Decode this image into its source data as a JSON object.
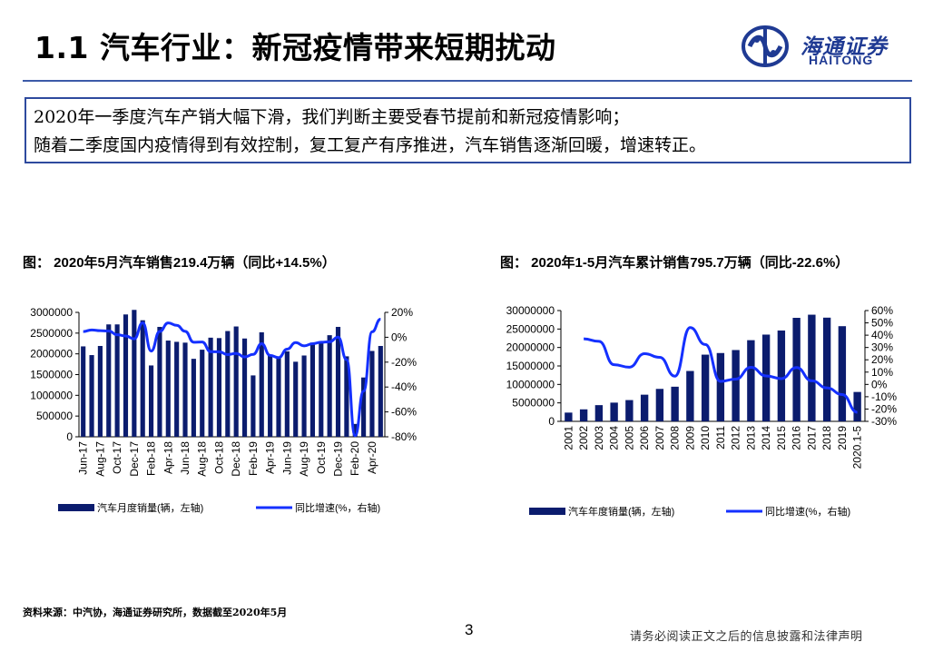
{
  "page": {
    "title": "1.1 汽车行业：新冠疫情带来短期扰动",
    "logo": {
      "cn": "海通证券",
      "en": "HAITONG",
      "icon": "haitong-logo-icon"
    },
    "summary": [
      "2020年一季度汽车产销大幅下滑，我们判断主要受春节提前和新冠疫情影响；",
      "随着二季度国内疫情得到有效控制，复工复产有序推进，汽车销售逐渐回暖，增速转正。"
    ],
    "source": "资料来源：中汽协，海通证券研究所，数据截至2020年5月",
    "page_number": "3",
    "disclaimer": "请务必阅读正文之后的信息披露和法律声明",
    "colors": {
      "bar": "#0b1c6e",
      "line": "#1430ff",
      "accent": "#2e4a9e"
    }
  },
  "chart_data": [
    {
      "type": "bar",
      "title": "图： 2020年5月汽车销售219.4万辆（同比+14.5%）",
      "categories": [
        "Jun-17",
        "Jul-17",
        "Aug-17",
        "Sep-17",
        "Oct-17",
        "Nov-17",
        "Dec-17",
        "Jan-18",
        "Feb-18",
        "Mar-18",
        "Apr-18",
        "May-18",
        "Jun-18",
        "Jul-18",
        "Aug-18",
        "Sep-18",
        "Oct-18",
        "Nov-18",
        "Dec-18",
        "Jan-19",
        "Feb-19",
        "Mar-19",
        "Apr-19",
        "May-19",
        "Jun-19",
        "Jul-19",
        "Aug-19",
        "Sep-19",
        "Oct-19",
        "Nov-19",
        "Dec-19",
        "Jan-20",
        "Feb-20",
        "Mar-20",
        "Apr-20",
        "May-20"
      ],
      "tick_labels": [
        "Jun-17",
        "Aug-17",
        "Oct-17",
        "Dec-17",
        "Feb-18",
        "Apr-18",
        "Jun-18",
        "Aug-18",
        "Oct-18",
        "Dec-18",
        "Feb-19",
        "Apr-19",
        "Jun-19",
        "Aug-19",
        "Oct-19",
        "Dec-19",
        "Feb-20",
        "Apr-20"
      ],
      "series": [
        {
          "name": "汽车月度销量(辆，左轴)",
          "kind": "bar",
          "axis": "left",
          "values": [
            2180000,
            1970000,
            2190000,
            2710000,
            2710000,
            2950000,
            3060000,
            2810000,
            1720000,
            2650000,
            2320000,
            2290000,
            2270000,
            1880000,
            2100000,
            2390000,
            2380000,
            2550000,
            2660000,
            2370000,
            1480000,
            2520000,
            1980000,
            1910000,
            2060000,
            1810000,
            1960000,
            2270000,
            2280000,
            2450000,
            2650000,
            1940000,
            310000,
            1430000,
            2070000,
            2190000
          ]
        },
        {
          "name": "同比增速(%，右轴)",
          "kind": "line",
          "axis": "right",
          "values": [
            4.6,
            5.9,
            5.3,
            5.0,
            2.0,
            1.0,
            -1.3,
            11.6,
            -11.1,
            4.7,
            11.5,
            9.6,
            4.8,
            -4.0,
            -3.8,
            -11.6,
            -11.7,
            -13.9,
            -13.0,
            -15.8,
            -13.8,
            -5.2,
            -14.6,
            -16.4,
            -9.6,
            -4.3,
            -6.9,
            -5.2,
            -4.0,
            -3.6,
            0.1,
            -18.0,
            -79.1,
            -43.3,
            4.4,
            14.5
          ]
        }
      ],
      "y_left": {
        "min": 0,
        "max": 3000000,
        "ticks": [
          "0",
          "500000",
          "1000000",
          "1500000",
          "2000000",
          "2500000",
          "3000000"
        ]
      },
      "y_right": {
        "min": -80,
        "max": 20,
        "ticks": [
          "-80%",
          "-60%",
          "-40%",
          "-20%",
          "0%",
          "20%"
        ]
      },
      "legend": [
        "汽车月度销量(辆，左轴)",
        "同比增速(%，右轴)"
      ],
      "legend_position": "bottom"
    },
    {
      "type": "bar",
      "title": "图： 2020年1-5月汽车累计销售795.7万辆（同比-22.6%）",
      "categories": [
        "2001",
        "2002",
        "2003",
        "2004",
        "2005",
        "2006",
        "2007",
        "2008",
        "2009",
        "2010",
        "2011",
        "2012",
        "2013",
        "2014",
        "2015",
        "2016",
        "2017",
        "2018",
        "2019",
        "2020.1-5"
      ],
      "series": [
        {
          "name": "汽车年度销量(辆，左轴)",
          "kind": "bar",
          "axis": "left",
          "values": [
            2370000,
            3250000,
            4390000,
            5070000,
            5760000,
            7220000,
            8790000,
            9380000,
            13640000,
            18060000,
            18500000,
            19310000,
            21980000,
            23490000,
            24600000,
            28030000,
            28880000,
            28080000,
            25770000,
            7957000
          ]
        },
        {
          "name": "同比增速(%，右轴)",
          "kind": "line",
          "axis": "right",
          "values": [
            null,
            37.0,
            35.0,
            16.0,
            14.0,
            25.0,
            22.0,
            6.7,
            46.2,
            32.4,
            2.5,
            4.3,
            13.9,
            6.9,
            4.7,
            13.7,
            3.0,
            -2.8,
            -8.2,
            -22.6
          ]
        }
      ],
      "y_left": {
        "min": 0,
        "max": 30000000,
        "ticks": [
          "0",
          "5000000",
          "10000000",
          "15000000",
          "20000000",
          "25000000",
          "30000000"
        ]
      },
      "y_right": {
        "min": -30,
        "max": 60,
        "ticks": [
          "-30%",
          "-20%",
          "-10%",
          "0%",
          "10%",
          "20%",
          "30%",
          "40%",
          "50%",
          "60%"
        ]
      },
      "legend": [
        "汽车年度销量(辆，左轴)",
        "同比增速(%，右轴)"
      ],
      "legend_position": "bottom"
    }
  ]
}
